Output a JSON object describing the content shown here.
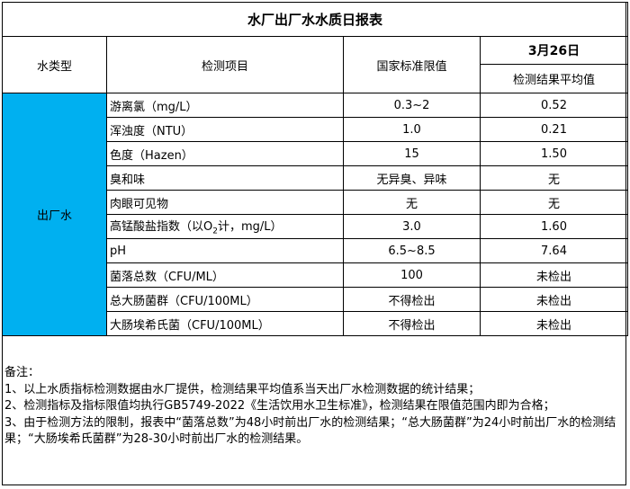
{
  "title": "水厂出厂水水质日报表",
  "headers": {
    "water_type": "水类型",
    "item": "检测项目",
    "standard": "国家标准限值",
    "date": "3月26日",
    "result": "检测结果平均值"
  },
  "water_type_value": "出厂水",
  "type_cell_color": "#00B0F0",
  "rows": [
    {
      "item": "游离氯（mg/L）",
      "standard": "0.3~2",
      "result": "0.52"
    },
    {
      "item": "浑浊度（NTU）",
      "standard": "1.0",
      "result": "0.21"
    },
    {
      "item": "色度（Hazen）",
      "standard": "15",
      "result": "1.50"
    },
    {
      "item": "臭和味",
      "standard": "无异臭、异味",
      "result": "无"
    },
    {
      "item": "肉眼可见物",
      "standard": "无",
      "result": "无"
    },
    {
      "item_pre": "高锰酸盐指数（以O",
      "item_sub": "2",
      "item_post": "计，mg/L）",
      "standard": "3.0",
      "result": "1.60"
    },
    {
      "item": "pH",
      "standard": "6.5~8.5",
      "result": "7.64"
    },
    {
      "item": "菌落总数（CFU/ML）",
      "standard": "100",
      "result": "未检出"
    },
    {
      "item": "总大肠菌群（CFU/100ML）",
      "standard": "不得检出",
      "result": "未检出"
    },
    {
      "item": "大肠埃希氏菌（CFU/100ML）",
      "standard": "不得检出",
      "result": "未检出"
    }
  ],
  "notes": {
    "heading": "备注：",
    "lines": [
      "1、以上水质指标检测数据由水厂提供，检测结果平均值系当天出厂水检测数据的统计结果；",
      "2、检测指标及指标限值均执行GB5749-2022《生活饮用水卫生标准》，检测结果在限值范围内即为合格；",
      "3、由于检测方法的限制，报表中“菌落总数”为48小时前出厂水的检测结果；“总大肠菌群”为24小时前出厂水的检测结果；“大肠埃希氏菌群”为28-30小时前出厂水的检测结果。"
    ]
  }
}
